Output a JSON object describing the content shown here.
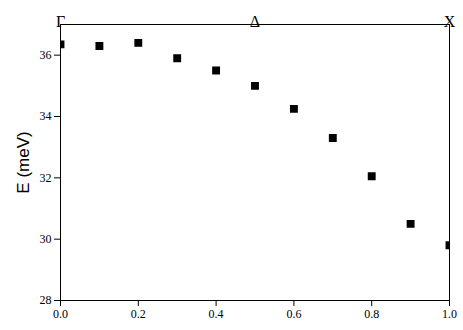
{
  "chart_data": {
    "type": "scatter",
    "y_label": "E (meV)",
    "x": [
      0.0,
      0.1,
      0.2,
      0.3,
      0.4,
      0.5,
      0.6,
      0.7,
      0.8,
      0.9,
      1.0
    ],
    "values": [
      36.35,
      36.3,
      36.4,
      35.9,
      35.5,
      35.0,
      34.25,
      33.3,
      32.05,
      30.5,
      29.8
    ],
    "color": "#000000",
    "marker": "square",
    "xlim": [
      0,
      1
    ],
    "xticks": [
      {
        "value": 0,
        "label": "0.0"
      },
      0.2,
      0.4,
      0.6,
      0.8,
      {
        "value": 1,
        "label": "1.0"
      }
    ],
    "ylim": [
      28,
      37
    ],
    "yticks": [
      28,
      30,
      32,
      34,
      36
    ],
    "annotations": [
      {
        "text": "Γ",
        "x": 0
      },
      {
        "text": "Δ",
        "x": 0.5
      },
      {
        "text": "X",
        "x": 1
      }
    ],
    "grid": false
  }
}
